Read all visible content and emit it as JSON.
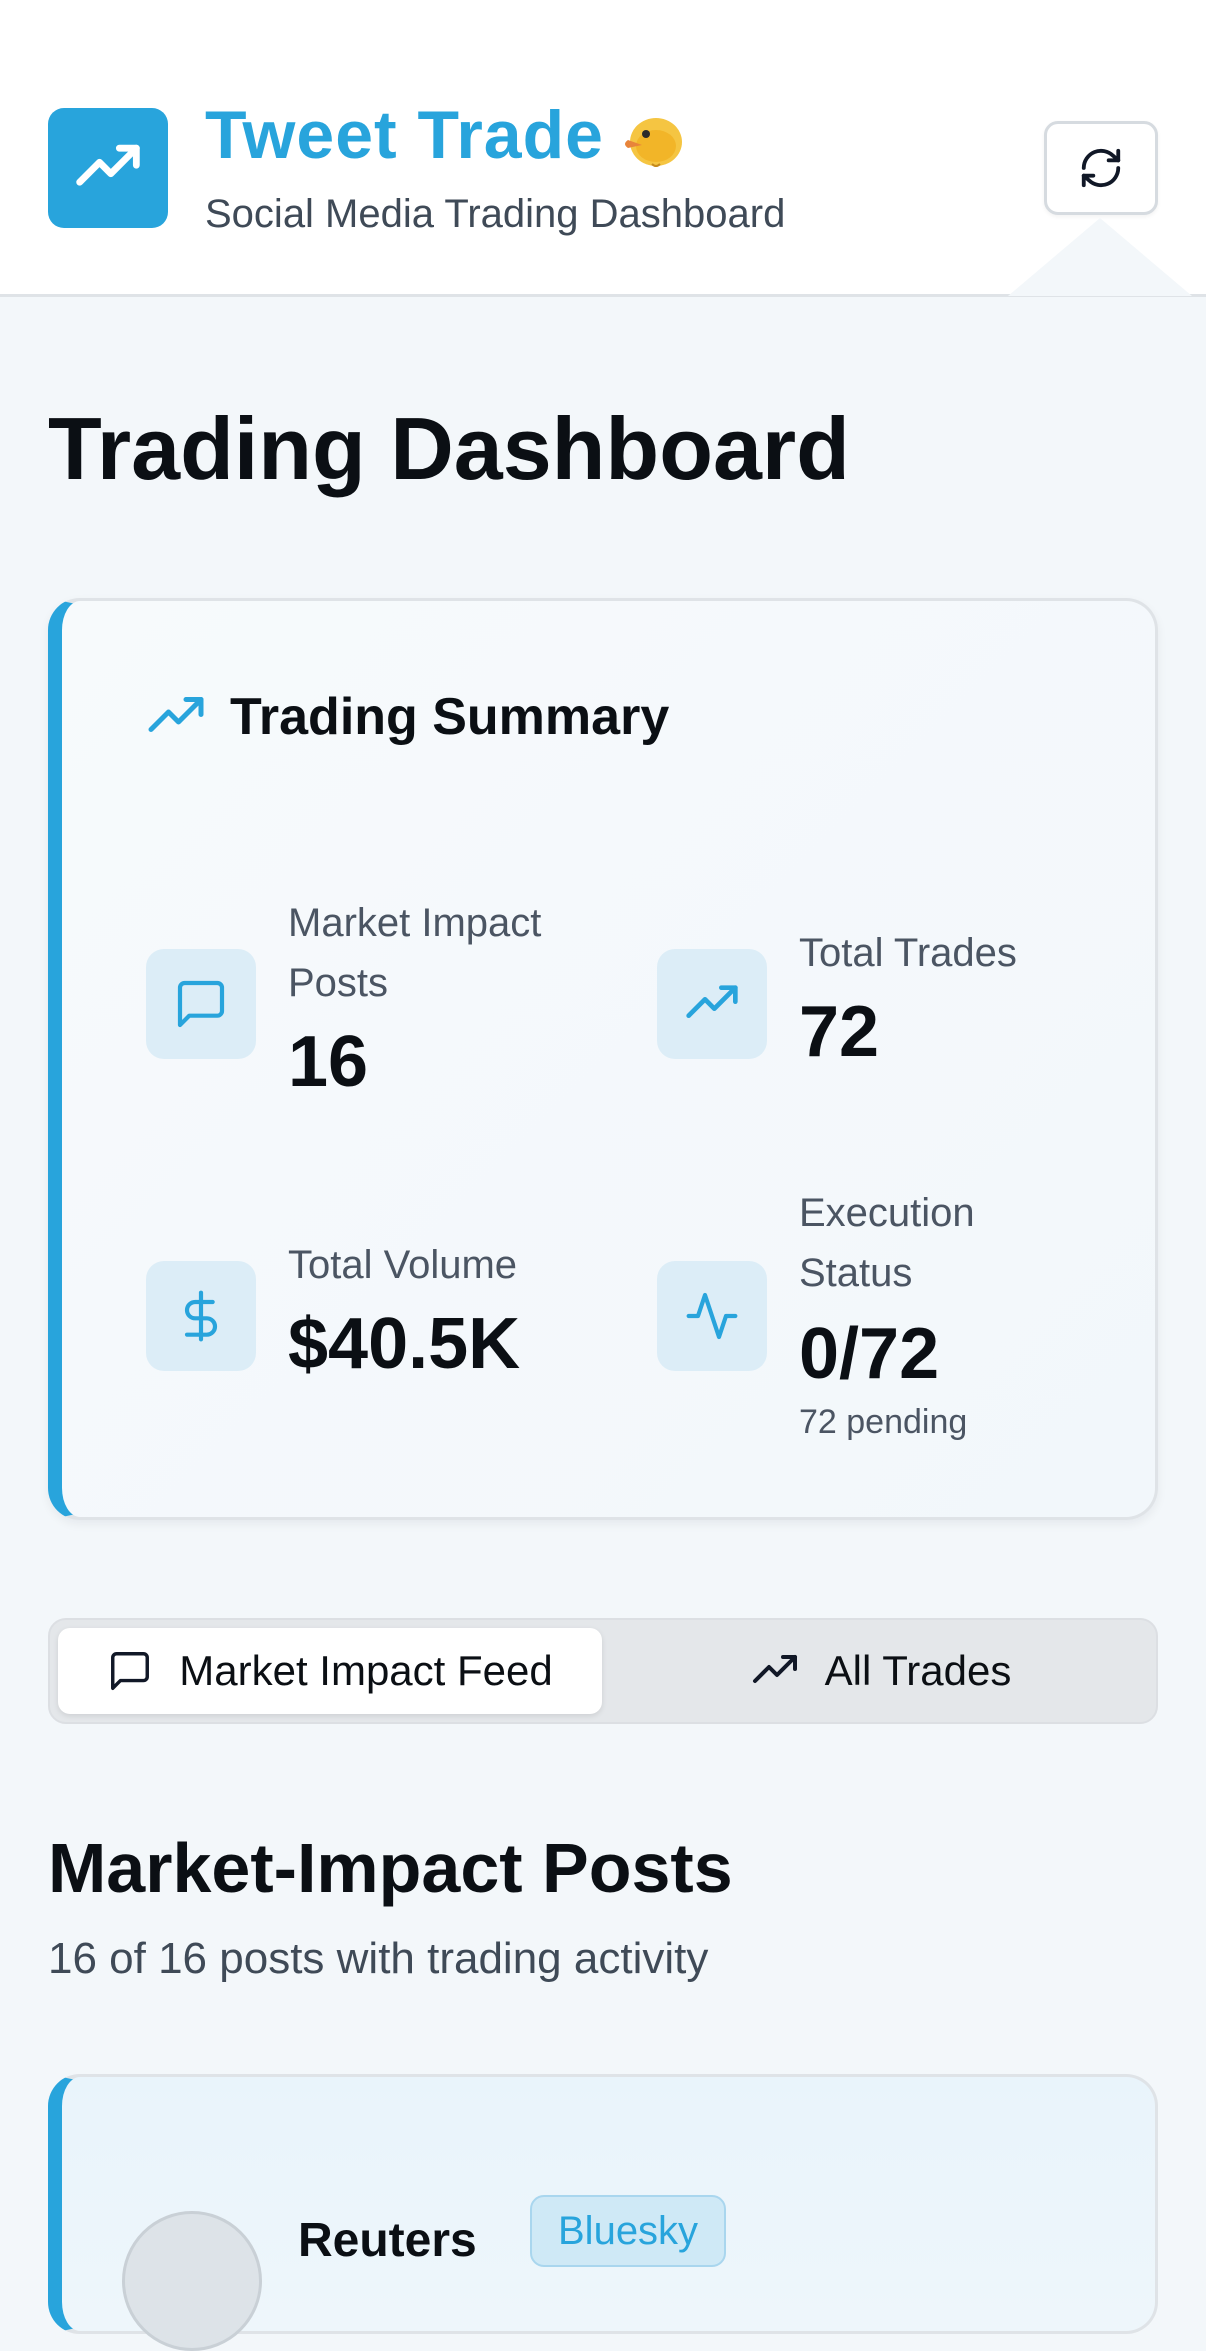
{
  "header": {
    "title": "Tweet Trade",
    "subtitle": "Social Media Trading Dashboard",
    "logo_icon": "trending-up-icon",
    "title_emoji_icon": "duck-emoji-icon",
    "refresh_icon": "refresh-icon"
  },
  "page": {
    "title": "Trading Dashboard"
  },
  "summary": {
    "title": "Trading Summary",
    "icon": "trending-up-icon",
    "stats": {
      "posts": {
        "label": "Market Impact Posts",
        "value": "16",
        "icon": "message-square-icon"
      },
      "trades": {
        "label": "Total Trades",
        "value": "72",
        "icon": "trending-up-icon"
      },
      "volume": {
        "label": "Total Volume",
        "value": "$40.5K",
        "icon": "dollar-icon"
      },
      "execution": {
        "label": "Execution Status",
        "value": "0/72",
        "note": "72 pending",
        "icon": "activity-icon"
      }
    }
  },
  "tabs": {
    "feed": {
      "label": "Market Impact Feed",
      "icon": "message-square-icon",
      "active": true
    },
    "trades": {
      "label": "All Trades",
      "icon": "trending-up-icon",
      "active": false
    }
  },
  "section": {
    "title": "Market-Impact Posts",
    "subtitle": "16 of 16 posts with trading activity"
  },
  "posts": [
    {
      "author": "Reuters",
      "platform": "Bluesky"
    }
  ],
  "colors": {
    "accent": "#28a4dc",
    "icon_bg": "#dcedf7",
    "text_primary": "#0b0f14",
    "text_secondary": "#4b5563"
  }
}
